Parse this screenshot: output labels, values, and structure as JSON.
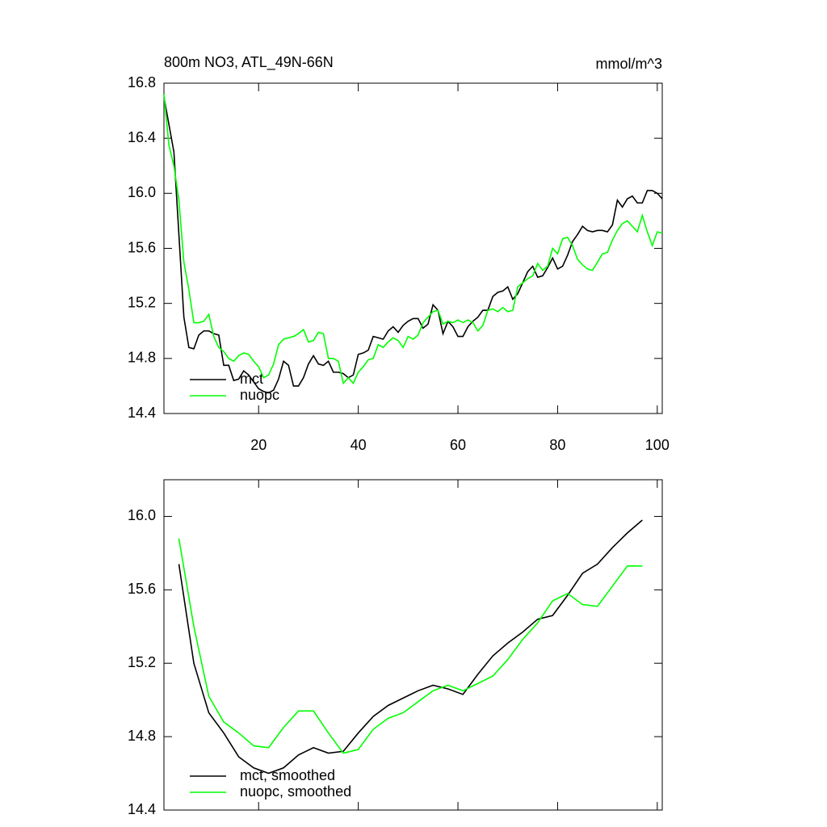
{
  "chart_data": [
    {
      "type": "line",
      "title": "800m NO3, ATL_49N-66N",
      "units": "mmol/m^3",
      "x": [
        1,
        2,
        3,
        4,
        5,
        6,
        7,
        8,
        9,
        10,
        11,
        12,
        13,
        14,
        15,
        16,
        17,
        18,
        19,
        20,
        21,
        22,
        23,
        24,
        25,
        26,
        27,
        28,
        29,
        30,
        31,
        32,
        33,
        34,
        35,
        36,
        37,
        38,
        39,
        40,
        41,
        42,
        43,
        44,
        45,
        46,
        47,
        48,
        49,
        50,
        51,
        52,
        53,
        54,
        55,
        56,
        57,
        58,
        59,
        60,
        61,
        62,
        63,
        64,
        65,
        66,
        67,
        68,
        69,
        70,
        71,
        72,
        73,
        74,
        75,
        76,
        77,
        78,
        79,
        80,
        81,
        82,
        83,
        84,
        85,
        86,
        87,
        88,
        89,
        90,
        91,
        92,
        93,
        94,
        95,
        96,
        97,
        98,
        99,
        100,
        101
      ],
      "series": [
        {
          "name": "mct",
          "color": "#000000",
          "values": [
            16.7,
            16.5,
            16.3,
            15.7,
            15.1,
            14.88,
            14.87,
            14.97,
            15.0,
            15.0,
            14.98,
            14.97,
            14.75,
            14.75,
            14.64,
            14.65,
            14.71,
            14.68,
            14.63,
            14.58,
            14.56,
            14.55,
            14.57,
            14.65,
            14.78,
            14.75,
            14.6,
            14.6,
            14.66,
            14.76,
            14.82,
            14.76,
            14.75,
            14.78,
            14.7,
            14.7,
            14.69,
            14.66,
            14.68,
            14.83,
            14.84,
            14.86,
            14.96,
            14.95,
            14.94,
            15.0,
            15.03,
            14.99,
            15.04,
            15.07,
            15.09,
            15.09,
            15.02,
            15.05,
            15.19,
            15.15,
            14.98,
            15.07,
            15.03,
            14.96,
            14.96,
            15.03,
            15.07,
            15.1,
            15.15,
            15.15,
            15.25,
            15.28,
            15.29,
            15.32,
            15.23,
            15.27,
            15.35,
            15.43,
            15.47,
            15.39,
            15.4,
            15.46,
            15.53,
            15.45,
            15.47,
            15.55,
            15.65,
            15.7,
            15.76,
            15.73,
            15.72,
            15.73,
            15.73,
            15.72,
            15.77,
            15.95,
            15.9,
            15.96,
            15.98,
            15.93,
            15.93,
            16.02,
            16.02,
            16.0,
            15.96
          ]
        },
        {
          "name": "nuopc",
          "color": "#00ff00",
          "values": [
            16.72,
            16.35,
            16.2,
            15.95,
            15.5,
            15.3,
            15.06,
            15.06,
            15.07,
            15.12,
            14.96,
            14.88,
            14.85,
            14.8,
            14.78,
            14.82,
            14.84,
            14.83,
            14.78,
            14.74,
            14.66,
            14.68,
            14.76,
            14.9,
            14.94,
            14.95,
            14.96,
            14.98,
            15.01,
            14.92,
            14.93,
            14.99,
            14.98,
            14.8,
            14.8,
            14.78,
            14.62,
            14.66,
            14.62,
            14.7,
            14.74,
            14.79,
            14.8,
            14.9,
            14.88,
            14.92,
            14.95,
            14.93,
            14.88,
            14.96,
            14.94,
            14.97,
            15.06,
            15.1,
            15.14,
            15.15,
            15.05,
            15.07,
            15.06,
            15.08,
            15.06,
            15.08,
            15.06,
            15.0,
            15.04,
            15.15,
            15.16,
            15.14,
            15.17,
            15.14,
            15.15,
            15.32,
            15.35,
            15.38,
            15.4,
            15.49,
            15.44,
            15.47,
            15.6,
            15.56,
            15.67,
            15.68,
            15.62,
            15.52,
            15.48,
            15.45,
            15.44,
            15.5,
            15.56,
            15.57,
            15.66,
            15.73,
            15.78,
            15.8,
            15.76,
            15.72,
            15.84,
            15.72,
            15.62,
            15.72,
            15.71
          ]
        }
      ],
      "xlim": [
        1,
        101
      ],
      "ylim": [
        14.4,
        16.8
      ],
      "xticks": [
        20,
        40,
        60,
        80,
        100
      ],
      "yticks": [
        14.4,
        14.8,
        15.2,
        15.6,
        {
          "value": 16,
          "label": "16.0"
        },
        16.4,
        16.8
      ],
      "show_xtick_labels": true,
      "legend": "lower left"
    },
    {
      "type": "line",
      "x": [
        4,
        7,
        10,
        13,
        16,
        19,
        22,
        25,
        28,
        31,
        34,
        37,
        40,
        43,
        46,
        49,
        52,
        55,
        58,
        61,
        64,
        67,
        70,
        73,
        76,
        79,
        82,
        85,
        88,
        91,
        94,
        97
      ],
      "series": [
        {
          "name": "mct, smoothed",
          "color": "#000000",
          "values": [
            15.74,
            15.2,
            14.93,
            14.82,
            14.69,
            14.63,
            14.6,
            14.63,
            14.7,
            14.74,
            14.71,
            14.72,
            14.82,
            14.91,
            14.97,
            15.01,
            15.05,
            15.08,
            15.06,
            15.03,
            15.14,
            15.24,
            15.31,
            15.37,
            15.44,
            15.46,
            15.57,
            15.69,
            15.74,
            15.83,
            15.91,
            15.98
          ]
        },
        {
          "name": "nuopc, smoothed",
          "color": "#00ff00",
          "values": [
            15.88,
            15.4,
            15.02,
            14.88,
            14.82,
            14.75,
            14.74,
            14.85,
            14.94,
            14.94,
            14.82,
            14.71,
            14.73,
            14.84,
            14.9,
            14.93,
            14.99,
            15.05,
            15.08,
            15.05,
            15.09,
            15.13,
            15.22,
            15.33,
            15.42,
            15.54,
            15.58,
            15.52,
            15.51,
            15.62,
            15.73,
            15.73
          ]
        }
      ],
      "xlim": [
        1,
        101
      ],
      "ylim": [
        14.4,
        16.2
      ],
      "xticks": [
        20,
        40,
        60,
        80,
        100
      ],
      "yticks": [
        14.4,
        14.8,
        15.2,
        15.6,
        {
          "value": 16,
          "label": "16.0"
        }
      ],
      "show_xtick_labels": false,
      "legend": "lower left"
    }
  ]
}
